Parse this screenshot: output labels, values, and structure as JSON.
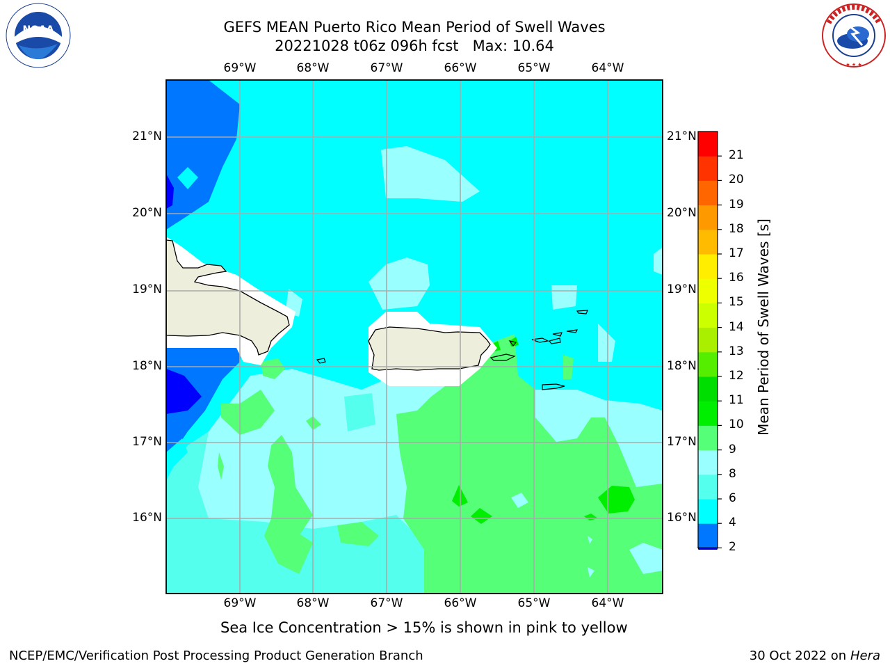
{
  "header": {
    "title_line1": "GEFS MEAN Puerto Rico Mean Period of Swell Waves",
    "title_line2": "20221028 t06z 096h fcst   Max: 10.64"
  },
  "map": {
    "lon_labels": [
      "69°W",
      "68°W",
      "67°W",
      "66°W",
      "65°W",
      "64°W"
    ],
    "lat_labels": [
      "21°N",
      "20°N",
      "19°N",
      "18°N",
      "17°N",
      "16°N"
    ],
    "colors": {
      "ocean_cyan": "#00ffff",
      "swell_light": "#99ffff",
      "swell_mid": "#55ffee",
      "green_light": "#55ff77",
      "green": "#00ee00",
      "blue": "#0077ff",
      "dark_blue": "#0000ff",
      "land": "#eeeedd",
      "grid": "#aaaaaa"
    }
  },
  "colorbar": {
    "title": "Mean Period of Swell Waves [s]",
    "levels": [
      "2",
      "4",
      "6",
      "8",
      "9",
      "10",
      "11",
      "12",
      "13",
      "14",
      "15",
      "16",
      "17",
      "18",
      "19",
      "20",
      "21"
    ],
    "colors": [
      "#0077ff",
      "#00ffff",
      "#55ffee",
      "#99ffff",
      "#55ff77",
      "#00ee00",
      "#00dd00",
      "#55ee00",
      "#aaee00",
      "#ccff00",
      "#eeff00",
      "#ffee00",
      "#ffbb00",
      "#ff9900",
      "#ff6600",
      "#ff3300",
      "#ff0000"
    ],
    "under_color": "#0000ee"
  },
  "footnote": "Sea Ice Concentration > 15% is shown in pink to yellow",
  "footer": {
    "left": "NCEP/EMC/Verification Post Processing Product Generation Branch",
    "right_prefix": "30 Oct 2022 on ",
    "right_machine": "Hera"
  },
  "logos": {
    "noaa_text": "NOAA",
    "nws_text": "NATIONAL WEATHER SERVICE"
  }
}
